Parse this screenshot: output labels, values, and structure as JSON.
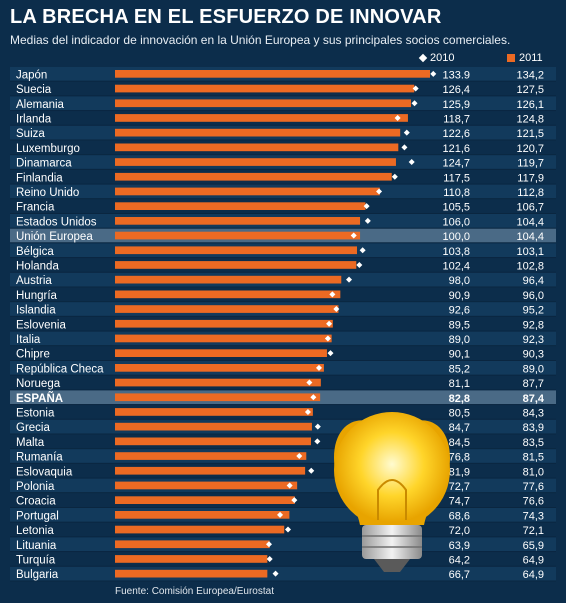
{
  "header": {
    "title": "LA BRECHA EN EL ESFUERZO DE INNOVAR",
    "subtitle": "Medias del indicador de innovación en la Unión Europea y sus principales socios comerciales."
  },
  "legend": {
    "label_2010": "2010",
    "label_2011": "2011"
  },
  "source": "Fuente: Comisión Europea/Eurostat",
  "colors": {
    "background": "#0c2d4b",
    "bar": "#ec6a23",
    "marker": "#ffffff",
    "row_alt": "#123a5c",
    "highlight": "#4a6a86"
  },
  "chart_data": {
    "type": "bar",
    "orientation": "horizontal",
    "categories": [
      "Japón",
      "Suecia",
      "Alemania",
      "Irlanda",
      "Suiza",
      "Luxemburgo",
      "Dinamarca",
      "Finlandia",
      "Reino Unido",
      "Francia",
      "Estados Unidos",
      "Unión  Europea",
      "Bélgica",
      "Holanda",
      "Austria",
      "Hungría",
      "Islandia",
      "Eslovenia",
      "Italia",
      "Chipre",
      "República Checa",
      "Noruega",
      "ESPAÑA",
      "Estonia",
      "Grecia",
      "Malta",
      "Rumanía",
      "Eslovaquia",
      "Polonia",
      "Croacia",
      "Portugal",
      "Letonia",
      "Lituania",
      "Turquía",
      "Bulgaria"
    ],
    "series": [
      {
        "name": "2010",
        "mark": "diamond",
        "values": [
          133.9,
          126.4,
          125.9,
          118.7,
          122.6,
          121.6,
          124.7,
          117.5,
          110.8,
          105.5,
          106.0,
          100.0,
          103.8,
          102.4,
          98.0,
          90.9,
          92.6,
          89.5,
          89.0,
          90.1,
          85.2,
          81.1,
          82.8,
          80.5,
          84.7,
          84.5,
          76.8,
          81.9,
          72.7,
          74.7,
          68.6,
          72.0,
          63.9,
          64.2,
          66.7
        ],
        "labels": [
          "133.9",
          "126,4",
          "125,9",
          "118,7",
          "122,6",
          "121,6",
          "124,7",
          "117,5",
          "110,8",
          "105,5",
          "106,0",
          "100,0",
          "103,8",
          "102,4",
          "98,0",
          "90,9",
          "92,6",
          "89,5",
          "89,0",
          "90,1",
          "85,2",
          "81,1",
          "82,8",
          "80,5",
          "84,7",
          "84,5",
          "76,8",
          "81,9",
          "72,7",
          "74,7",
          "68,6",
          "72,0",
          "63,9",
          "64,2",
          "66,7"
        ]
      },
      {
        "name": "2011",
        "mark": "bar",
        "values": [
          134.2,
          127.5,
          126.1,
          124.8,
          121.5,
          120.7,
          119.7,
          117.9,
          112.8,
          106.7,
          104.4,
          104.4,
          103.1,
          102.8,
          96.4,
          96.0,
          95.2,
          92.8,
          92.3,
          90.3,
          89.0,
          87.7,
          87.4,
          84.3,
          83.9,
          83.5,
          81.5,
          81.0,
          77.6,
          76.6,
          74.3,
          72.1,
          65.9,
          64.9,
          64.9
        ],
        "labels": [
          "134,2",
          "127,5",
          "126,1",
          "124,8",
          "121,5",
          "120,7",
          "119,7",
          "117,9",
          "112,8",
          "106,7",
          "104,4",
          "104,4",
          "103,1",
          "102,8",
          "96,4",
          "96,0",
          "95,2",
          "92,8",
          "92,3",
          "90,3",
          "89,0",
          "87,7",
          "87,4",
          "84,3",
          "83,9",
          "83,5",
          "81,5",
          "81,0",
          "77,6",
          "76,6",
          "74,3",
          "72,1",
          "65,9",
          "64,9",
          "64,9"
        ]
      }
    ],
    "highlighted": [
      "Unión  Europea",
      "ESPAÑA"
    ],
    "bold_rows": [
      "ESPAÑA"
    ],
    "xlim": [
      0,
      134.2
    ]
  }
}
